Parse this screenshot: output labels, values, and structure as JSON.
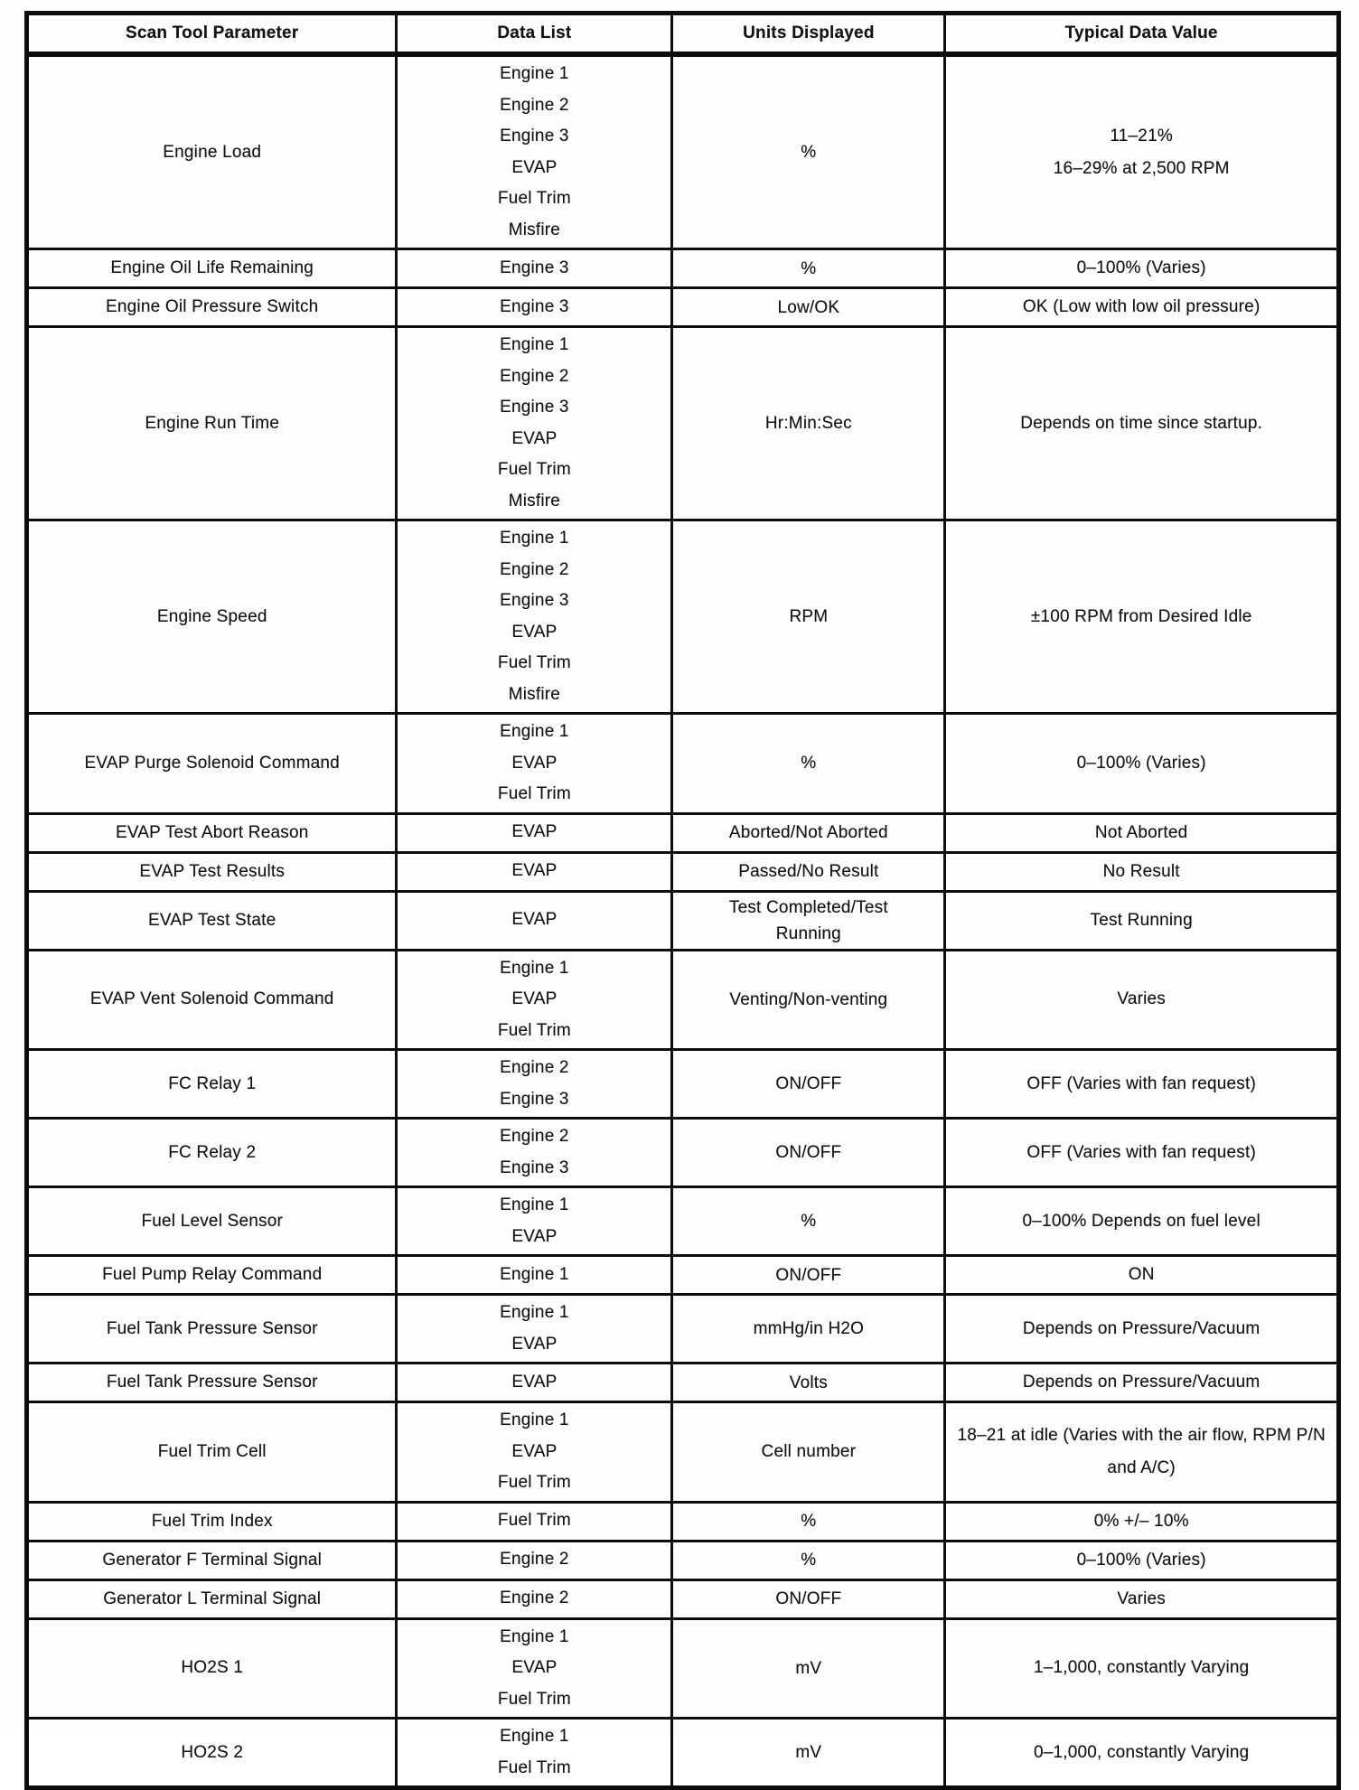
{
  "table": {
    "columns": [
      "Scan Tool Parameter",
      "Data List",
      "Units Displayed",
      "Typical Data Value"
    ],
    "rows": [
      {
        "parameter": "Engine Load",
        "data_list": [
          "Engine 1",
          "Engine 2",
          "Engine 3",
          "EVAP",
          "Fuel Trim",
          "Misfire"
        ],
        "units": "%",
        "typical": [
          "11–21%",
          "16–29% at 2,500 RPM"
        ]
      },
      {
        "parameter": "Engine Oil Life Remaining",
        "data_list": [
          "Engine 3"
        ],
        "units": "%",
        "typical": [
          "0–100% (Varies)"
        ]
      },
      {
        "parameter": "Engine Oil Pressure Switch",
        "data_list": [
          "Engine 3"
        ],
        "units": "Low/OK",
        "typical": [
          "OK (Low with low oil pressure)"
        ]
      },
      {
        "parameter": "Engine Run Time",
        "data_list": [
          "Engine 1",
          "Engine 2",
          "Engine 3",
          "EVAP",
          "Fuel Trim",
          "Misfire"
        ],
        "units": "Hr:Min:Sec",
        "typical": [
          "Depends on time since startup."
        ]
      },
      {
        "parameter": "Engine Speed",
        "data_list": [
          "Engine 1",
          "Engine 2",
          "Engine 3",
          "EVAP",
          "Fuel Trim",
          "Misfire"
        ],
        "units": "RPM",
        "typical": [
          "±100 RPM from Desired Idle"
        ]
      },
      {
        "parameter": "EVAP Purge Solenoid Command",
        "data_list": [
          "Engine 1",
          "EVAP",
          "Fuel Trim"
        ],
        "units": "%",
        "typical": [
          "0–100% (Varies)"
        ]
      },
      {
        "parameter": "EVAP Test Abort Reason",
        "data_list": [
          "EVAP"
        ],
        "units": "Aborted/Not Aborted",
        "typical": [
          "Not Aborted"
        ]
      },
      {
        "parameter": "EVAP Test Results",
        "data_list": [
          "EVAP"
        ],
        "units": "Passed/No Result",
        "typical": [
          "No Result"
        ]
      },
      {
        "parameter": "EVAP Test State",
        "data_list": [
          "EVAP"
        ],
        "units": "Test Completed/Test Running",
        "typical": [
          "Test Running"
        ]
      },
      {
        "parameter": "EVAP Vent Solenoid Command",
        "data_list": [
          "Engine 1",
          "EVAP",
          "Fuel Trim"
        ],
        "units": "Venting/Non-venting",
        "typical": [
          "Varies"
        ]
      },
      {
        "parameter": "FC Relay 1",
        "data_list": [
          "Engine 2",
          "Engine 3"
        ],
        "units": "ON/OFF",
        "typical": [
          "OFF (Varies with fan request)"
        ]
      },
      {
        "parameter": "FC Relay 2",
        "data_list": [
          "Engine 2",
          "Engine 3"
        ],
        "units": "ON/OFF",
        "typical": [
          "OFF (Varies with fan request)"
        ]
      },
      {
        "parameter": "Fuel Level Sensor",
        "data_list": [
          "Engine 1",
          "EVAP"
        ],
        "units": "%",
        "typical": [
          "0–100% Depends on fuel level"
        ]
      },
      {
        "parameter": "Fuel Pump Relay Command",
        "data_list": [
          "Engine 1"
        ],
        "units": "ON/OFF",
        "typical": [
          "ON"
        ]
      },
      {
        "parameter": "Fuel Tank Pressure Sensor",
        "data_list": [
          "Engine 1",
          "EVAP"
        ],
        "units": "mmHg/in H2O",
        "typical": [
          "Depends on Pressure/Vacuum"
        ]
      },
      {
        "parameter": "Fuel Tank Pressure Sensor",
        "data_list": [
          "EVAP"
        ],
        "units": "Volts",
        "typical": [
          "Depends on Pressure/Vacuum"
        ]
      },
      {
        "parameter": "Fuel Trim Cell",
        "data_list": [
          "Engine 1",
          "EVAP",
          "Fuel Trim"
        ],
        "units": "Cell number",
        "typical": [
          "18–21 at idle (Varies with the air flow, RPM P/N and A/C)"
        ]
      },
      {
        "parameter": "Fuel Trim Index",
        "data_list": [
          "Fuel Trim"
        ],
        "units": "%",
        "typical": [
          "0% +/– 10%"
        ]
      },
      {
        "parameter": "Generator F Terminal Signal",
        "data_list": [
          "Engine 2"
        ],
        "units": "%",
        "typical": [
          "0–100% (Varies)"
        ]
      },
      {
        "parameter": "Generator L Terminal Signal",
        "data_list": [
          "Engine 2"
        ],
        "units": "ON/OFF",
        "typical": [
          "Varies"
        ]
      },
      {
        "parameter": "HO2S 1",
        "data_list": [
          "Engine 1",
          "EVAP",
          "Fuel Trim"
        ],
        "units": "mV",
        "typical": [
          "1–1,000, constantly Varying"
        ]
      },
      {
        "parameter": "HO2S 2",
        "data_list": [
          "Engine 1",
          "Fuel Trim"
        ],
        "units": "mV",
        "typical": [
          "0–1,000, constantly Varying"
        ]
      }
    ]
  }
}
